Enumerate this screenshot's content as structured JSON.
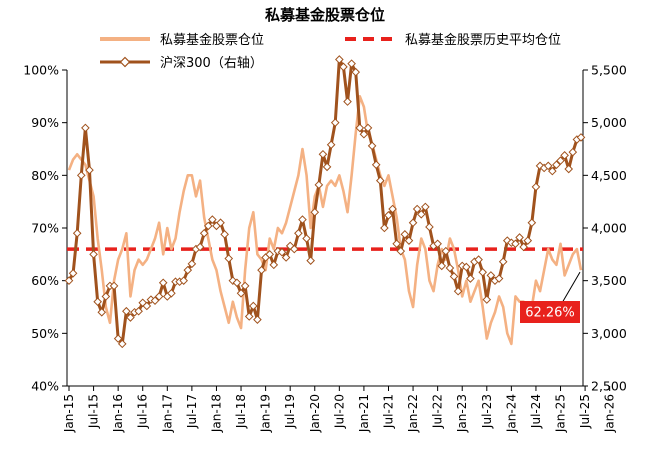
{
  "chart_data": {
    "type": "line",
    "title": "私募基金股票仓位",
    "legend": [
      "私募基金股票仓位",
      "私募基金股票历史平均仓位",
      "沪深300（右轴）"
    ],
    "x_ticks": [
      "Jan-15",
      "Jul-15",
      "Jan-16",
      "Jul-16",
      "Jan-17",
      "Jul-17",
      "Jan-18",
      "Jul-18",
      "Jan-19",
      "Jul-19",
      "Jan-20",
      "Jul-20",
      "Jan-21",
      "Jul-21",
      "Jan-22",
      "Jul-22",
      "Jan-23",
      "Jul-23",
      "Jan-24",
      "Jul-24",
      "Jan-25",
      "Jul-25",
      "Jan-26"
    ],
    "x_start": "2015-01",
    "y_left": {
      "ticks": [
        "40%",
        "50%",
        "60%",
        "70%",
        "80%",
        "90%",
        "100%"
      ],
      "range": [
        40,
        100
      ],
      "unit": "%"
    },
    "y_right": {
      "ticks": [
        "2,500",
        "3,000",
        "3,500",
        "4,000",
        "4,500",
        "5,000",
        "5,500"
      ],
      "range": [
        2500,
        5500
      ]
    },
    "average_position": 66,
    "annotation": "62.26%",
    "series": [
      {
        "name": "私募基金股票仓位",
        "axis": "left",
        "color": "#f4b183",
        "values": [
          81,
          83,
          84,
          83,
          82,
          79,
          76,
          68,
          62,
          55,
          52,
          60,
          64,
          66,
          69,
          57,
          62,
          64,
          63,
          64,
          66,
          68,
          71,
          65,
          70,
          66,
          68,
          73,
          77,
          80,
          80,
          76,
          79,
          72,
          68,
          64,
          62,
          58,
          55,
          52,
          56,
          53,
          51,
          62,
          70,
          73,
          65,
          64,
          62,
          68,
          66,
          70,
          69,
          71,
          74,
          77,
          80,
          85,
          80,
          70,
          76,
          78,
          74,
          78,
          79,
          78,
          80,
          77,
          73,
          80,
          88,
          95,
          93,
          88,
          86,
          83,
          80,
          78,
          80,
          76,
          72,
          66,
          64,
          58,
          55,
          63,
          68,
          66,
          60,
          58,
          63,
          66,
          64,
          68,
          66,
          62,
          57,
          60,
          56,
          58,
          60,
          55,
          49,
          52,
          54,
          57,
          55,
          50,
          48,
          57,
          56,
          56,
          54,
          55,
          60,
          58,
          62,
          66,
          64,
          63,
          67,
          61,
          63,
          65,
          66,
          62
        ]
      },
      {
        "name": "沪深300（右轴）",
        "axis": "right",
        "color": "#a0521d",
        "values": [
          3500,
          3570,
          3950,
          4500,
          4950,
          4550,
          3750,
          3300,
          3200,
          3350,
          3450,
          3450,
          2950,
          2900,
          3210,
          3150,
          3200,
          3210,
          3290,
          3260,
          3320,
          3310,
          3350,
          3480,
          3350,
          3380,
          3490,
          3490,
          3500,
          3600,
          3660,
          3800,
          3820,
          3950,
          4020,
          4080,
          4020,
          4050,
          3940,
          3710,
          3500,
          3480,
          3380,
          3450,
          3160,
          3260,
          3130,
          3600,
          3720,
          3750,
          3650,
          3780,
          3770,
          3720,
          3830,
          3800,
          3950,
          4080,
          3900,
          3690,
          4150,
          4410,
          4700,
          4580,
          4790,
          5000,
          5600,
          5530,
          5200,
          5560,
          5480,
          4950,
          4890,
          4950,
          4780,
          4600,
          4450,
          4000,
          4120,
          4180,
          3850,
          3780,
          3940,
          3880,
          4050,
          4180,
          4130,
          4200,
          4010,
          3830,
          3850,
          3640,
          3780,
          3620,
          3540,
          3400,
          3640,
          3630,
          3520,
          3680,
          3700,
          3580,
          3320,
          3550,
          3500,
          3520,
          3680,
          3880,
          3860,
          3850,
          3910,
          3820,
          3880,
          4050,
          4390,
          4590,
          4570,
          4590,
          4540,
          4600,
          4640,
          4690,
          4560,
          4720,
          4840,
          4860
        ]
      }
    ]
  }
}
